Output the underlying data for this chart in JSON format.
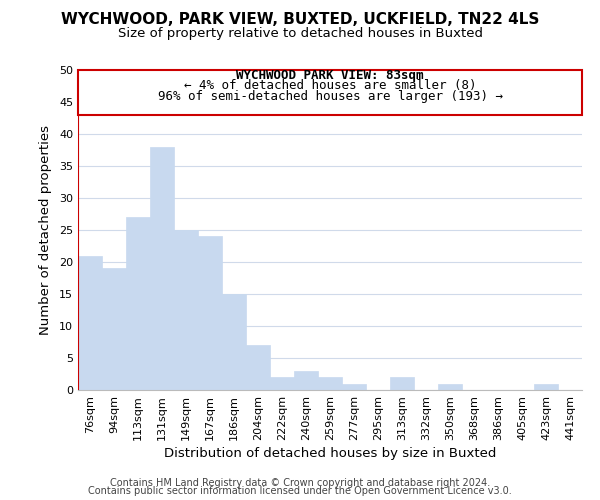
{
  "title1": "WYCHWOOD, PARK VIEW, BUXTED, UCKFIELD, TN22 4LS",
  "title2": "Size of property relative to detached houses in Buxted",
  "xlabel": "Distribution of detached houses by size in Buxted",
  "ylabel": "Number of detached properties",
  "bar_color": "#c8d9ef",
  "categories": [
    "76sqm",
    "94sqm",
    "113sqm",
    "131sqm",
    "149sqm",
    "167sqm",
    "186sqm",
    "204sqm",
    "222sqm",
    "240sqm",
    "259sqm",
    "277sqm",
    "295sqm",
    "313sqm",
    "332sqm",
    "350sqm",
    "368sqm",
    "386sqm",
    "405sqm",
    "423sqm",
    "441sqm"
  ],
  "values": [
    21,
    19,
    27,
    38,
    25,
    24,
    15,
    7,
    2,
    3,
    2,
    1,
    0,
    2,
    0,
    1,
    0,
    0,
    0,
    1,
    0
  ],
  "ylim": [
    0,
    50
  ],
  "yticks": [
    0,
    5,
    10,
    15,
    20,
    25,
    30,
    35,
    40,
    45,
    50
  ],
  "annotation_text_line1": "WYCHWOOD PARK VIEW: 83sqm",
  "annotation_text_line2": "← 4% of detached houses are smaller (8)",
  "annotation_text_line3": "96% of semi-detached houses are larger (193) →",
  "footer1": "Contains HM Land Registry data © Crown copyright and database right 2024.",
  "footer2": "Contains public sector information licensed under the Open Government Licence v3.0.",
  "background_color": "#ffffff",
  "grid_color": "#d0daea",
  "annotation_box_color": "#ffffff",
  "annotation_box_edge_color": "#cc0000",
  "marker_line_color": "#cc0000",
  "title_fontsize": 11,
  "subtitle_fontsize": 9.5,
  "tick_fontsize": 8,
  "label_fontsize": 9.5,
  "annotation_fontsize": 9,
  "footer_fontsize": 7
}
